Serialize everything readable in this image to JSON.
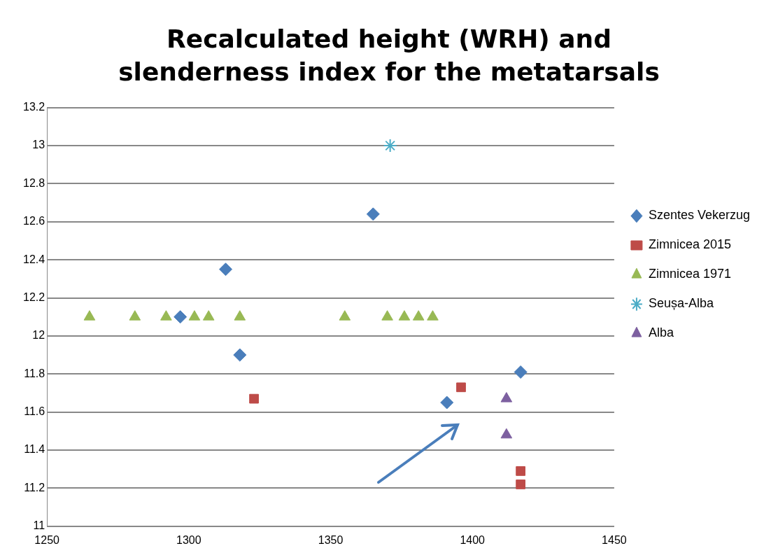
{
  "chart_data": {
    "type": "scatter",
    "title": "Recalculated height (WRH) and slenderness index for the metatarsals",
    "xlim": [
      1250,
      1450
    ],
    "xticks": [
      1250,
      1300,
      1350,
      1400,
      1450
    ],
    "ylim": [
      11,
      13.2
    ],
    "yticks": [
      11,
      11.2,
      11.4,
      11.6,
      11.8,
      12,
      12.2,
      12.4,
      12.6,
      12.8,
      13,
      13.2
    ],
    "grid": "y",
    "legend": "right",
    "series": [
      {
        "name": "Szentes Vekerzug",
        "color": "#4a7ebb",
        "marker": "diamond",
        "x": [
          1313,
          1297,
          1318,
          1365,
          1391,
          1417
        ],
        "values": [
          12.35,
          12.1,
          11.9,
          12.64,
          11.65,
          11.81
        ]
      },
      {
        "name": "Zimnicea 2015",
        "color": "#be4b48",
        "marker": "square",
        "x": [
          1323,
          1396,
          1417,
          1417
        ],
        "values": [
          11.67,
          11.73,
          11.29,
          11.22
        ]
      },
      {
        "name": "Zimnicea 1971",
        "color": "#98b954",
        "marker": "triangle",
        "x": [
          1265,
          1281,
          1292,
          1302,
          1307,
          1318,
          1355,
          1370,
          1376,
          1381,
          1386
        ],
        "values": [
          12.1,
          12.1,
          12.1,
          12.1,
          12.1,
          12.1,
          12.1,
          12.1,
          12.1,
          12.1,
          12.1
        ]
      },
      {
        "name": "Seușa-Alba",
        "color": "#4bacc6",
        "marker": "cross",
        "x": [
          1371
        ],
        "values": [
          13
        ]
      },
      {
        "name": "Alba",
        "color": "#7d60a0",
        "marker": "triangle",
        "x": [
          1412,
          1412
        ],
        "values": [
          11.67,
          11.48
        ]
      }
    ]
  }
}
